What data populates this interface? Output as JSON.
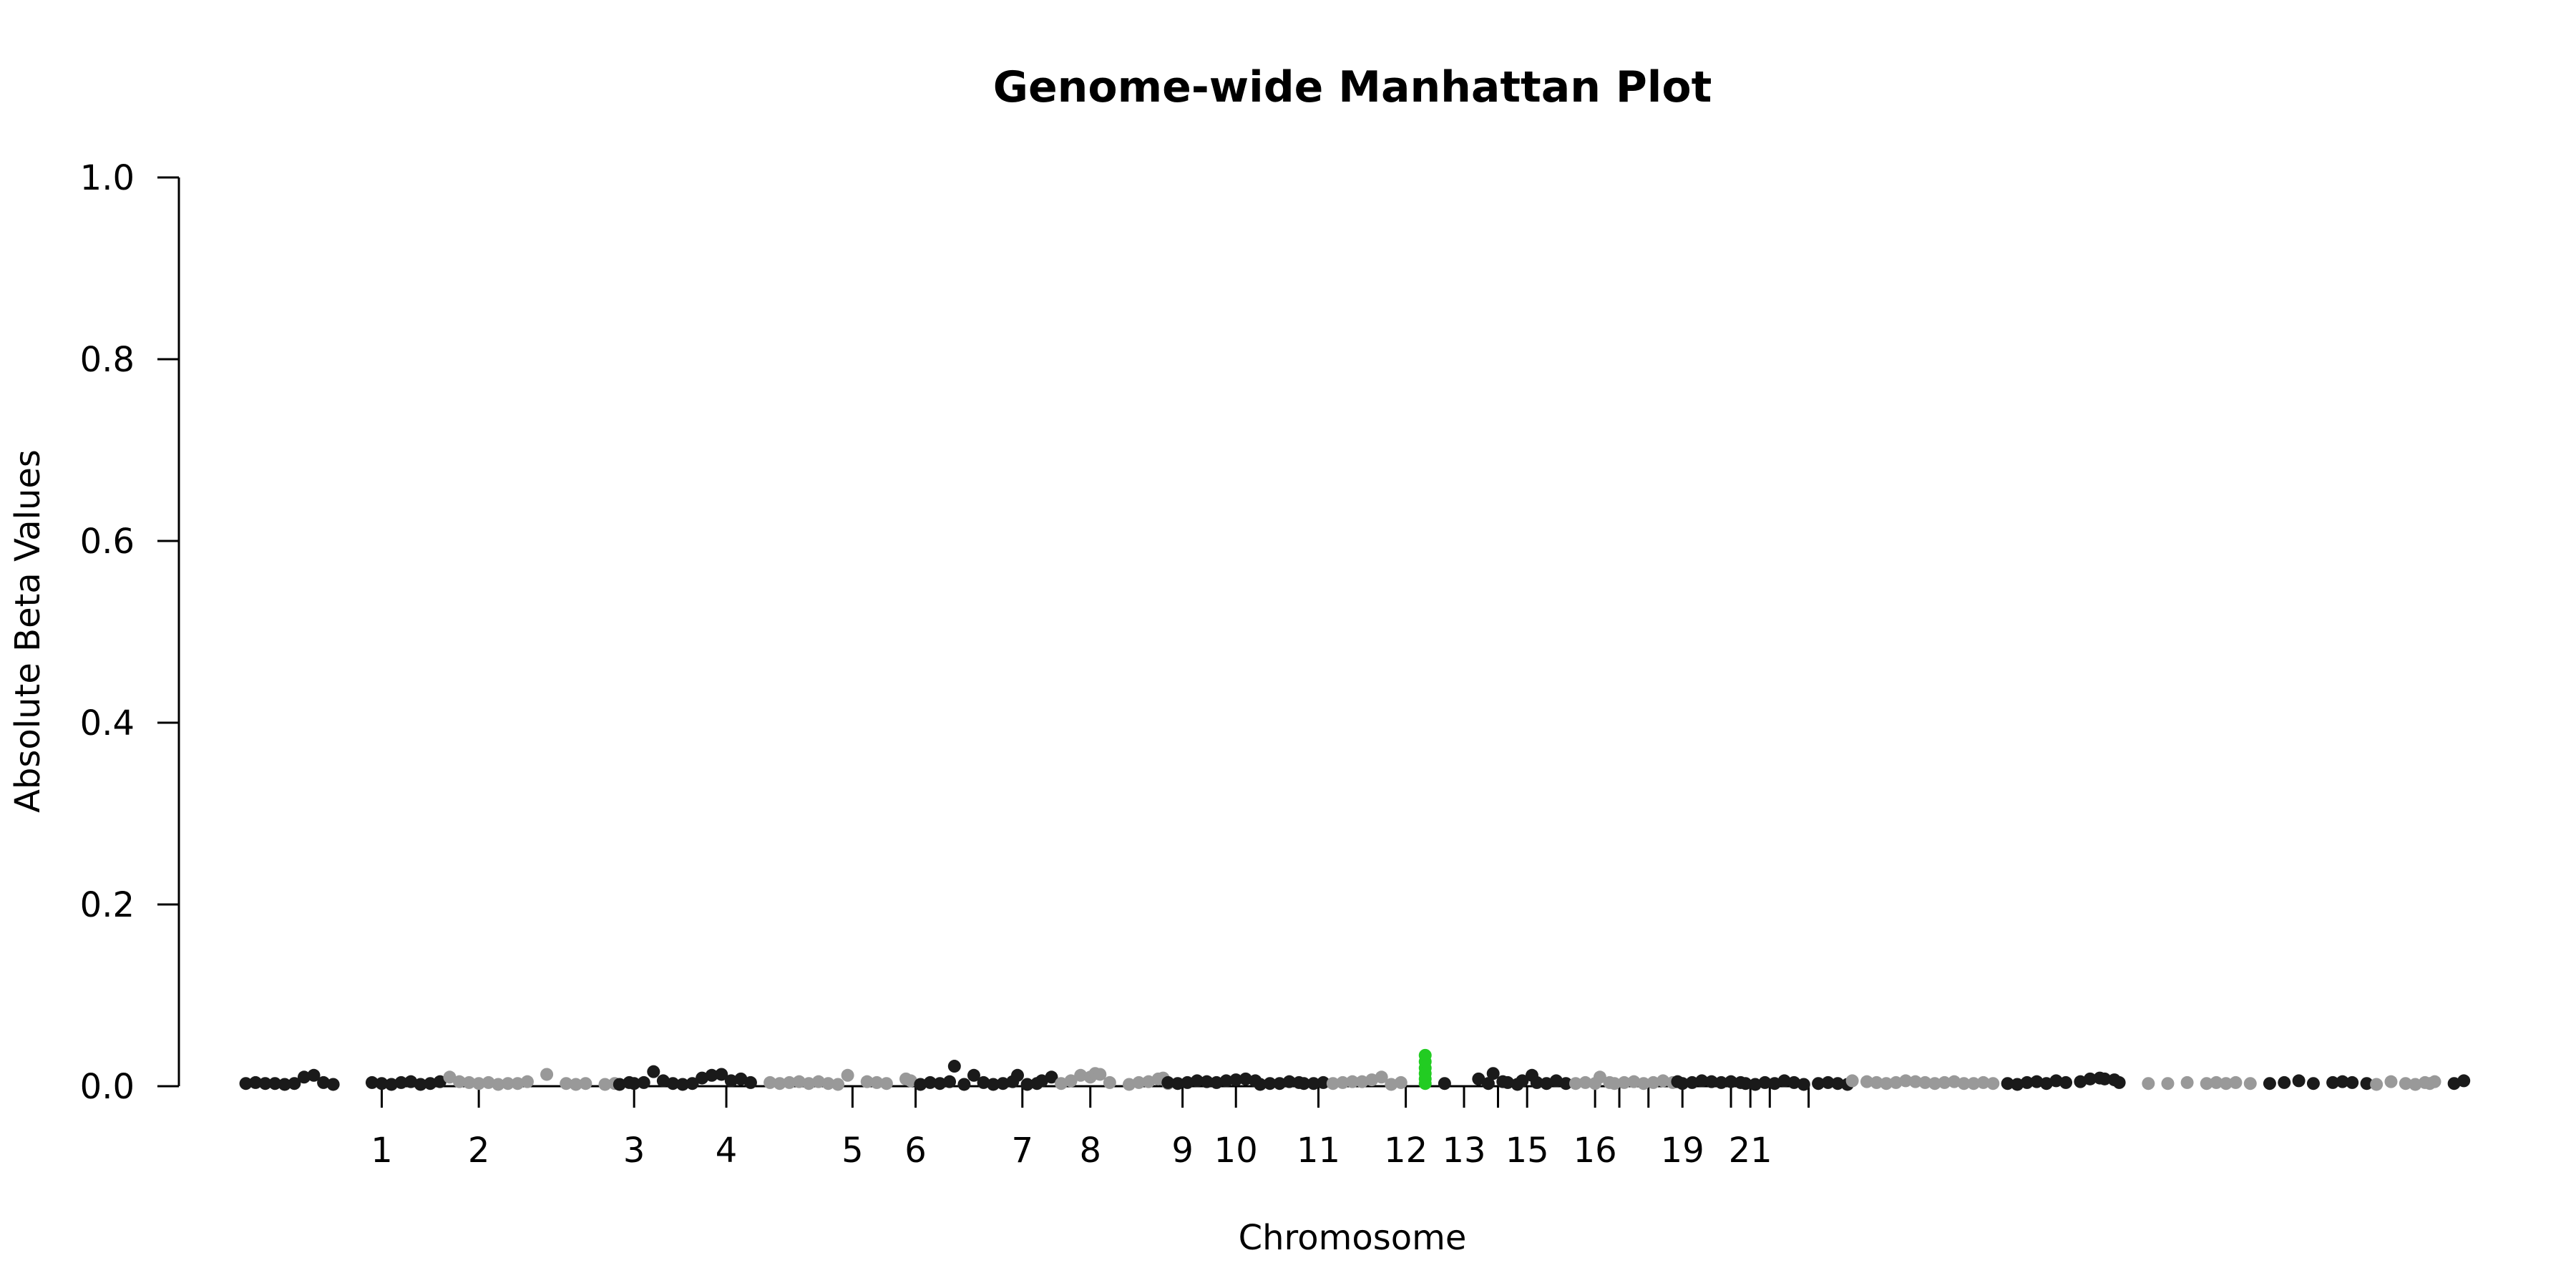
{
  "chart_data": {
    "type": "scatter",
    "title": "Genome-wide Manhattan Plot",
    "xlabel": "Chromosome",
    "ylabel": "Absolute Beta Values",
    "ylim": [
      0,
      1.0
    ],
    "yticks": [
      "0.0",
      "0.2",
      "0.4",
      "0.6",
      "0.8",
      "1.0"
    ],
    "xlim": [
      0.5,
      23.5
    ],
    "xticks": [
      {
        "label": "1",
        "x": 2
      },
      {
        "label": "2",
        "x": 3
      },
      {
        "label": "3",
        "x": 4.6
      },
      {
        "label": "4",
        "x": 5.55
      },
      {
        "label": "5",
        "x": 6.85
      },
      {
        "label": "6",
        "x": 7.5
      },
      {
        "label": "7",
        "x": 8.6
      },
      {
        "label": "8",
        "x": 9.3
      },
      {
        "label": "9",
        "x": 10.25
      },
      {
        "label": "10",
        "x": 10.8
      },
      {
        "label": "11",
        "x": 11.65
      },
      {
        "label": "12",
        "x": 12.55
      },
      {
        "label": "13",
        "x": 13.15
      },
      {
        "label": "",
        "x": 13.5
      },
      {
        "label": "15",
        "x": 13.8
      },
      {
        "label": "16",
        "x": 14.5
      },
      {
        "label": "",
        "x": 14.75
      },
      {
        "label": "",
        "x": 15.05
      },
      {
        "label": "19",
        "x": 15.4
      },
      {
        "label": "",
        "x": 15.9
      },
      {
        "label": "21",
        "x": 16.1
      },
      {
        "label": "",
        "x": 16.3
      },
      {
        "label": "",
        "x": 16.7
      }
    ],
    "grid": false,
    "colors": {
      "odd": "#1a1a1a",
      "even": "#999999",
      "highlight": "#22cc22"
    },
    "series": [
      {
        "color": "odd",
        "points": [
          [
            0.6,
            0.003
          ],
          [
            0.7,
            0.004
          ],
          [
            0.8,
            0.003
          ],
          [
            0.9,
            0.003
          ],
          [
            1.0,
            0.002
          ],
          [
            1.1,
            0.003
          ],
          [
            1.2,
            0.01
          ],
          [
            1.3,
            0.012
          ],
          [
            1.4,
            0.004
          ],
          [
            1.5,
            0.002
          ],
          [
            1.9,
            0.004
          ],
          [
            2.0,
            0.003
          ],
          [
            2.1,
            0.002
          ],
          [
            2.2,
            0.004
          ],
          [
            2.3,
            0.005
          ],
          [
            2.4,
            0.002
          ],
          [
            2.5,
            0.003
          ],
          [
            2.6,
            0.005
          ]
        ]
      },
      {
        "color": "even",
        "points": [
          [
            2.7,
            0.01
          ],
          [
            2.8,
            0.005
          ],
          [
            2.9,
            0.004
          ],
          [
            3.0,
            0.003
          ],
          [
            3.1,
            0.004
          ],
          [
            3.2,
            0.002
          ],
          [
            3.3,
            0.003
          ],
          [
            3.4,
            0.003
          ],
          [
            3.5,
            0.005
          ],
          [
            3.7,
            0.013
          ],
          [
            3.9,
            0.003
          ],
          [
            4.0,
            0.002
          ],
          [
            4.1,
            0.003
          ],
          [
            4.3,
            0.002
          ],
          [
            4.4,
            0.003
          ]
        ]
      },
      {
        "color": "odd",
        "points": [
          [
            4.45,
            0.002
          ],
          [
            4.55,
            0.004
          ],
          [
            4.6,
            0.003
          ],
          [
            4.7,
            0.004
          ],
          [
            4.8,
            0.016
          ],
          [
            4.9,
            0.006
          ],
          [
            5.0,
            0.003
          ],
          [
            5.1,
            0.002
          ],
          [
            5.2,
            0.003
          ],
          [
            5.3,
            0.009
          ],
          [
            5.4,
            0.012
          ],
          [
            5.5,
            0.013
          ],
          [
            5.6,
            0.006
          ],
          [
            5.7,
            0.008
          ],
          [
            5.8,
            0.004
          ]
        ]
      },
      {
        "color": "even",
        "points": [
          [
            6.0,
            0.004
          ],
          [
            6.1,
            0.003
          ],
          [
            6.2,
            0.004
          ],
          [
            6.3,
            0.005
          ],
          [
            6.4,
            0.003
          ],
          [
            6.5,
            0.005
          ],
          [
            6.6,
            0.003
          ],
          [
            6.7,
            0.002
          ],
          [
            6.8,
            0.012
          ],
          [
            7.0,
            0.005
          ],
          [
            7.1,
            0.004
          ],
          [
            7.2,
            0.003
          ],
          [
            7.4,
            0.008
          ],
          [
            7.45,
            0.006
          ]
        ]
      },
      {
        "color": "odd",
        "points": [
          [
            7.55,
            0.002
          ],
          [
            7.65,
            0.004
          ],
          [
            7.75,
            0.003
          ],
          [
            7.85,
            0.005
          ],
          [
            7.9,
            0.022
          ],
          [
            8.0,
            0.002
          ],
          [
            8.1,
            0.012
          ],
          [
            8.2,
            0.004
          ],
          [
            8.3,
            0.002
          ],
          [
            8.4,
            0.003
          ],
          [
            8.5,
            0.005
          ],
          [
            8.55,
            0.012
          ],
          [
            8.65,
            0.002
          ],
          [
            8.75,
            0.003
          ],
          [
            8.8,
            0.006
          ],
          [
            8.9,
            0.01
          ]
        ]
      },
      {
        "color": "even",
        "points": [
          [
            9.0,
            0.003
          ],
          [
            9.1,
            0.006
          ],
          [
            9.2,
            0.012
          ],
          [
            9.3,
            0.01
          ],
          [
            9.35,
            0.014
          ],
          [
            9.4,
            0.013
          ],
          [
            9.5,
            0.004
          ],
          [
            9.7,
            0.002
          ],
          [
            9.8,
            0.004
          ],
          [
            9.9,
            0.005
          ],
          [
            10.0,
            0.008
          ],
          [
            10.05,
            0.009
          ],
          [
            10.1,
            0.003
          ]
        ]
      },
      {
        "color": "odd",
        "points": [
          [
            10.1,
            0.004
          ],
          [
            10.2,
            0.003
          ],
          [
            10.3,
            0.004
          ],
          [
            10.4,
            0.006
          ],
          [
            10.5,
            0.005
          ],
          [
            10.6,
            0.004
          ],
          [
            10.7,
            0.006
          ],
          [
            10.8,
            0.007
          ],
          [
            10.9,
            0.008
          ],
          [
            11.0,
            0.006
          ],
          [
            11.05,
            0.002
          ],
          [
            11.15,
            0.003
          ],
          [
            11.25,
            0.003
          ],
          [
            11.35,
            0.005
          ],
          [
            11.45,
            0.004
          ],
          [
            11.5,
            0.003
          ],
          [
            11.6,
            0.003
          ],
          [
            11.7,
            0.004
          ]
        ]
      },
      {
        "color": "even",
        "points": [
          [
            11.8,
            0.003
          ],
          [
            11.9,
            0.004
          ],
          [
            12.0,
            0.005
          ],
          [
            12.1,
            0.005
          ],
          [
            12.2,
            0.007
          ],
          [
            12.3,
            0.01
          ],
          [
            12.4,
            0.002
          ],
          [
            12.5,
            0.004
          ]
        ]
      },
      {
        "color": "highlight",
        "points": [
          [
            12.75,
            0.003
          ],
          [
            12.75,
            0.008
          ],
          [
            12.75,
            0.014
          ],
          [
            12.75,
            0.02
          ],
          [
            12.75,
            0.027
          ],
          [
            12.75,
            0.034
          ]
        ]
      },
      {
        "color": "odd",
        "points": [
          [
            12.95,
            0.003
          ],
          [
            13.3,
            0.008
          ],
          [
            13.4,
            0.003
          ],
          [
            13.45,
            0.014
          ],
          [
            13.55,
            0.005
          ],
          [
            13.6,
            0.004
          ],
          [
            13.7,
            0.002
          ],
          [
            13.75,
            0.006
          ],
          [
            13.85,
            0.012
          ],
          [
            13.9,
            0.004
          ],
          [
            14.0,
            0.003
          ],
          [
            14.1,
            0.006
          ],
          [
            14.2,
            0.003
          ]
        ]
      },
      {
        "color": "even",
        "points": [
          [
            14.3,
            0.003
          ],
          [
            14.4,
            0.004
          ],
          [
            14.5,
            0.003
          ],
          [
            14.55,
            0.01
          ],
          [
            14.65,
            0.004
          ],
          [
            14.7,
            0.003
          ],
          [
            14.8,
            0.004
          ],
          [
            14.9,
            0.005
          ],
          [
            15.0,
            0.003
          ],
          [
            15.1,
            0.004
          ],
          [
            15.2,
            0.006
          ],
          [
            15.3,
            0.004
          ]
        ]
      },
      {
        "color": "odd",
        "points": [
          [
            15.35,
            0.005
          ],
          [
            15.4,
            0.003
          ],
          [
            15.5,
            0.004
          ],
          [
            15.6,
            0.006
          ],
          [
            15.7,
            0.005
          ],
          [
            15.8,
            0.004
          ],
          [
            15.9,
            0.005
          ],
          [
            16.0,
            0.004
          ],
          [
            16.05,
            0.003
          ],
          [
            16.15,
            0.002
          ],
          [
            16.25,
            0.004
          ],
          [
            16.35,
            0.003
          ],
          [
            16.45,
            0.006
          ],
          [
            16.55,
            0.004
          ],
          [
            16.65,
            0.002
          ],
          [
            16.8,
            0.003
          ],
          [
            16.9,
            0.004
          ],
          [
            17.0,
            0.003
          ],
          [
            17.1,
            0.002
          ]
        ]
      },
      {
        "color": "even",
        "points": [
          [
            17.15,
            0.006
          ],
          [
            17.3,
            0.005
          ],
          [
            17.4,
            0.004
          ],
          [
            17.5,
            0.003
          ],
          [
            17.6,
            0.004
          ],
          [
            17.7,
            0.006
          ],
          [
            17.8,
            0.005
          ],
          [
            17.9,
            0.004
          ],
          [
            18.0,
            0.003
          ],
          [
            18.1,
            0.004
          ],
          [
            18.2,
            0.005
          ],
          [
            18.3,
            0.003
          ],
          [
            18.4,
            0.003
          ],
          [
            18.5,
            0.004
          ],
          [
            18.6,
            0.003
          ]
        ]
      },
      {
        "color": "odd",
        "points": [
          [
            18.75,
            0.003
          ],
          [
            18.85,
            0.002
          ],
          [
            18.95,
            0.004
          ],
          [
            19.05,
            0.005
          ],
          [
            19.15,
            0.003
          ],
          [
            19.25,
            0.006
          ],
          [
            19.35,
            0.004
          ],
          [
            19.5,
            0.005
          ],
          [
            19.6,
            0.008
          ],
          [
            19.7,
            0.009
          ],
          [
            19.75,
            0.008
          ],
          [
            19.85,
            0.007
          ],
          [
            19.9,
            0.004
          ]
        ]
      },
      {
        "color": "even",
        "points": [
          [
            20.2,
            0.003
          ],
          [
            20.4,
            0.003
          ],
          [
            20.6,
            0.004
          ],
          [
            20.8,
            0.003
          ],
          [
            20.9,
            0.004
          ],
          [
            21.0,
            0.003
          ],
          [
            21.1,
            0.004
          ],
          [
            21.25,
            0.003
          ]
        ]
      },
      {
        "color": "odd",
        "points": [
          [
            21.45,
            0.003
          ],
          [
            21.6,
            0.004
          ],
          [
            21.75,
            0.006
          ],
          [
            21.9,
            0.003
          ],
          [
            22.1,
            0.004
          ],
          [
            22.2,
            0.005
          ],
          [
            22.3,
            0.004
          ],
          [
            22.45,
            0.003
          ]
        ]
      },
      {
        "color": "even",
        "points": [
          [
            22.55,
            0.002
          ],
          [
            22.7,
            0.005
          ],
          [
            22.85,
            0.003
          ],
          [
            22.95,
            0.002
          ],
          [
            23.05,
            0.004
          ],
          [
            23.1,
            0.003
          ],
          [
            23.15,
            0.005
          ]
        ]
      },
      {
        "color": "odd",
        "points": [
          [
            23.35,
            0.003
          ],
          [
            23.45,
            0.006
          ]
        ]
      }
    ]
  }
}
